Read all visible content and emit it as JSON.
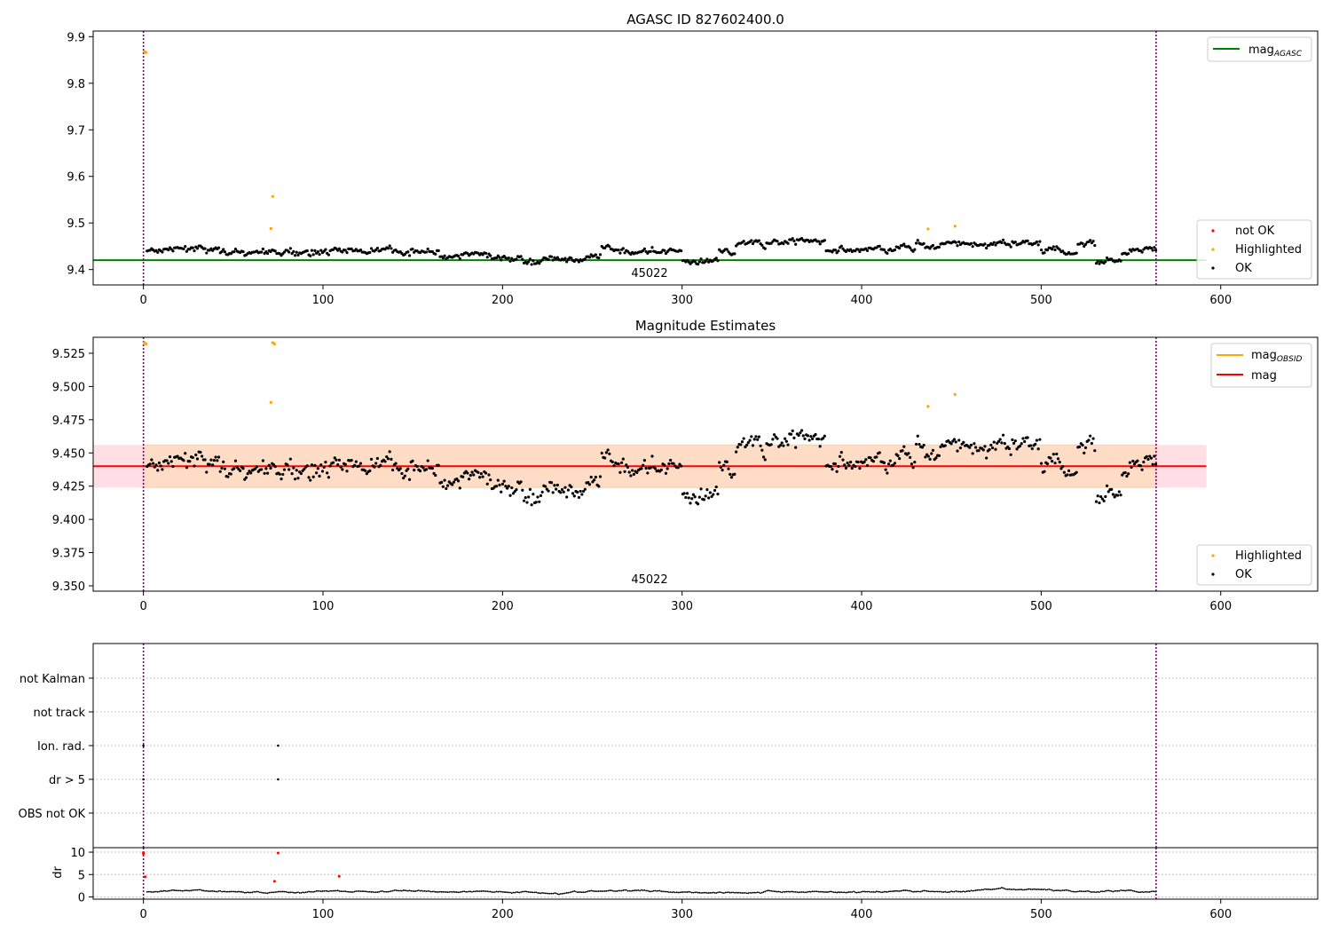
{
  "colors": {
    "ok": "#000000",
    "highlighted": "#ffa500",
    "not_ok": "#ff0000",
    "mag_agasc_line": "#008000",
    "mag_obsid_line": "#ffa500",
    "mag_line": "#ff0000",
    "band_fill": "#ffc0cb",
    "band_inner_fill": "#ffdab9",
    "obsid_divider": "#800080",
    "grid": "#b0b0b0"
  },
  "chart_data": [
    {
      "type": "scatter",
      "title": "AGASC ID 827602400.0",
      "xlim": [
        -28,
        654
      ],
      "ylim": [
        9.367,
        9.912
      ],
      "x_ticks": [
        "0",
        "100",
        "200",
        "300",
        "400",
        "500",
        "600"
      ],
      "y_ticks": [
        "9.4",
        "9.5",
        "9.6",
        "9.7",
        "9.8",
        "9.9"
      ],
      "obsid_label": "45022",
      "obsid_divider_x": [
        0,
        564
      ],
      "line_legend": {
        "label": "mag",
        "subscript": "AGASC"
      },
      "point_legend": [
        "not OK",
        "Highlighted",
        "OK"
      ],
      "mag_agasc": 9.42,
      "highlighted_points": [
        [
          0.5,
          9.868
        ],
        [
          1.5,
          9.866
        ],
        [
          72,
          9.557
        ],
        [
          71,
          9.488
        ],
        [
          437,
          9.487
        ],
        [
          452,
          9.493
        ]
      ],
      "ok_series": {
        "x_start": 2,
        "x_end": 564,
        "baseline": 9.44
      }
    },
    {
      "type": "scatter",
      "title": "Magnitude Estimates",
      "xlim": [
        -28,
        654
      ],
      "ylim": [
        9.346,
        9.537
      ],
      "x_ticks": [
        "0",
        "100",
        "200",
        "300",
        "400",
        "500",
        "600"
      ],
      "y_ticks": [
        "9.350",
        "9.375",
        "9.400",
        "9.425",
        "9.450",
        "9.475",
        "9.500",
        "9.525"
      ],
      "obsid_label": "45022",
      "obsid_divider_x": [
        0,
        564
      ],
      "line_legend": [
        {
          "label": "mag",
          "subscript": "OBSID"
        },
        {
          "label": "mag",
          "subscript": ""
        }
      ],
      "point_legend": [
        "Highlighted",
        "OK"
      ],
      "mag": 9.44,
      "mag_obsid": 9.44,
      "band": [
        9.424,
        9.456
      ],
      "highlighted_points": [
        [
          0.5,
          9.533
        ],
        [
          1.5,
          9.532
        ],
        [
          72,
          9.533
        ],
        [
          73,
          9.532
        ],
        [
          71,
          9.488
        ],
        [
          437,
          9.485
        ],
        [
          452,
          9.494
        ]
      ]
    },
    {
      "type": "scatter",
      "title": "",
      "xlim": [
        -28,
        654
      ],
      "categories": [
        "not Kalman",
        "not track",
        "Ion. rad.",
        "dr > 5",
        "OBS not OK"
      ],
      "flag_points": [
        {
          "category": "Ion. rad.",
          "x": [
            0,
            75
          ]
        },
        {
          "category": "dr > 5",
          "x": [
            0,
            75
          ]
        }
      ],
      "obsid_divider_x": [
        0,
        564
      ]
    },
    {
      "type": "scatter",
      "title": "",
      "xlim": [
        -28,
        654
      ],
      "ylim": [
        -0.5,
        11
      ],
      "ylabel": "dr",
      "x_ticks": [
        "0",
        "100",
        "200",
        "300",
        "400",
        "500",
        "600"
      ],
      "y_ticks": [
        "0",
        "5",
        "10"
      ],
      "red_points": [
        [
          0,
          9.9
        ],
        [
          0,
          9.6
        ],
        [
          1,
          4.5
        ],
        [
          75,
          9.8
        ],
        [
          73,
          3.5
        ],
        [
          109,
          4.6
        ]
      ],
      "obsid_divider_x": [
        0,
        564
      ]
    }
  ]
}
